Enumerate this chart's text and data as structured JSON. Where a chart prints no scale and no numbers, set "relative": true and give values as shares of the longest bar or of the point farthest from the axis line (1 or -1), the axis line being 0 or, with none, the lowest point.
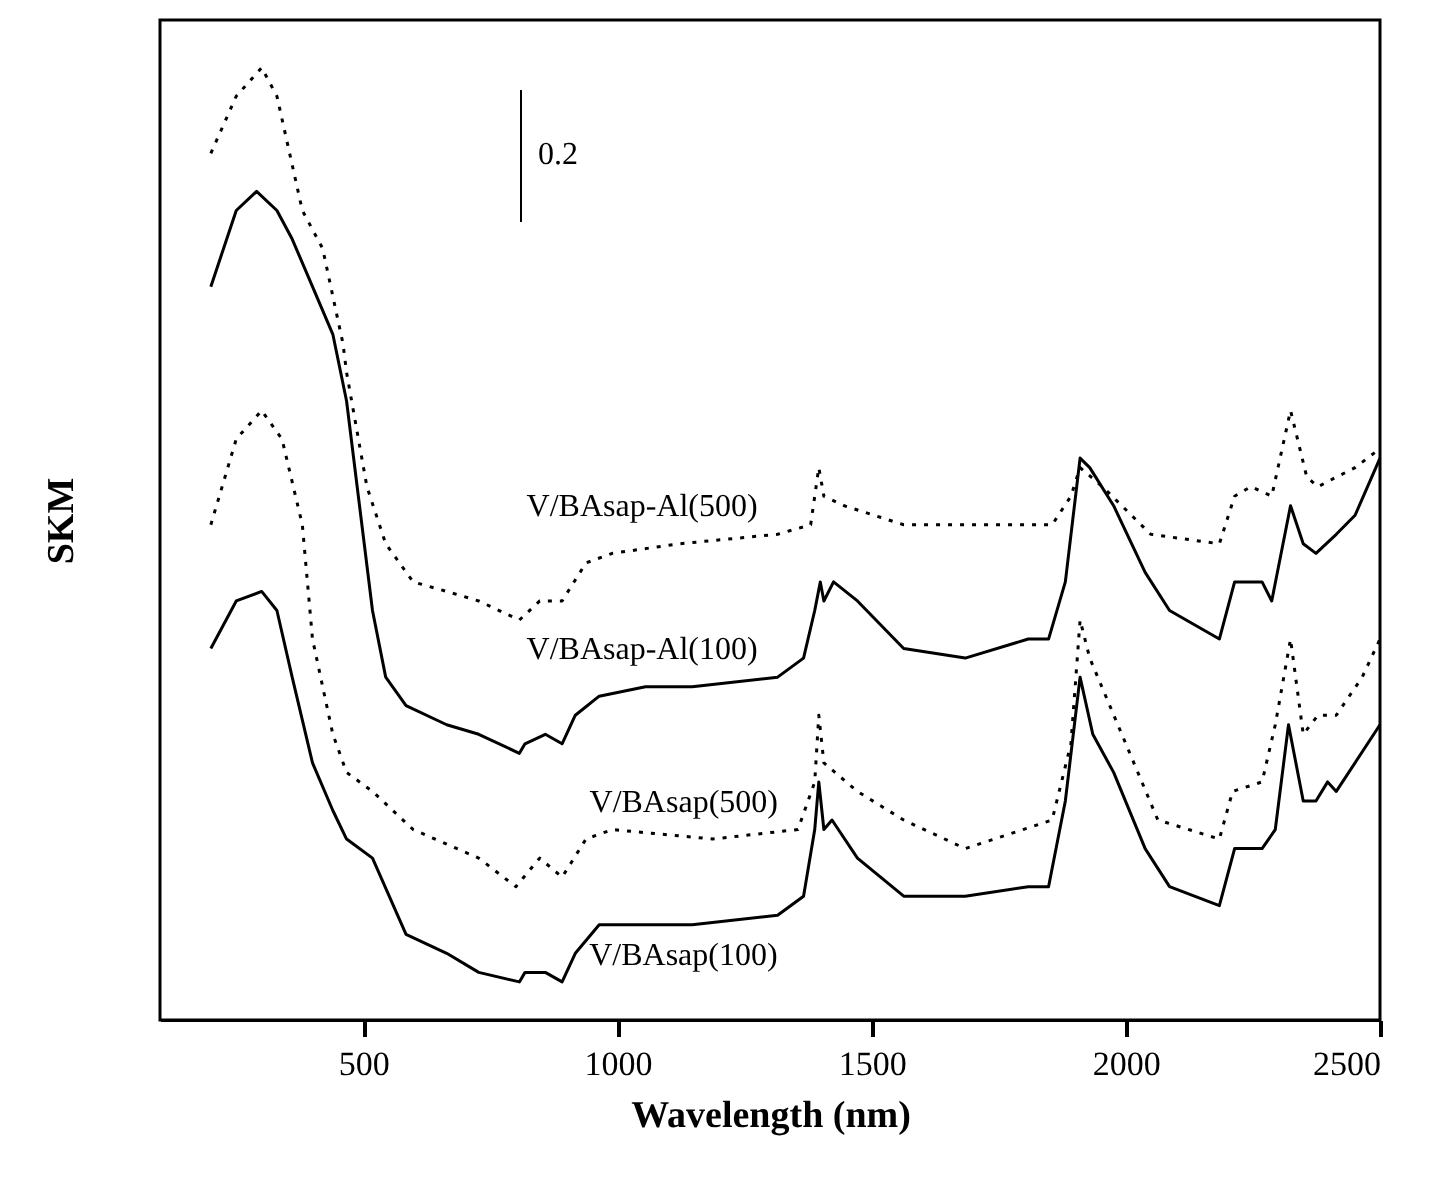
{
  "chart_data": {
    "type": "line",
    "relative": true,
    "xlabel": "Wavelength  (nm)",
    "ylabel": "SKM",
    "xlim": [
      100,
      2500
    ],
    "xticks": [
      500,
      1000,
      1500,
      2000,
      2500
    ],
    "marker": "none",
    "annotations": [
      "0.2"
    ],
    "series": [
      {
        "name": "V/BAsap-Al(500)",
        "color": "#000000",
        "line_style": "dotted",
        "x": [
          200,
          250,
          300,
          330,
          380,
          420,
          460,
          467,
          507,
          544,
          598,
          664,
          727,
          807,
          847,
          891,
          938,
          990,
          1121,
          1315,
          1380,
          1396,
          1406,
          1446,
          1563,
          1855,
          1892,
          1910,
          1954,
          2049,
          2184,
          2214,
          2246,
          2287,
          2324,
          2356,
          2378,
          2414,
          2451,
          2500
        ],
        "values": [
          0.91,
          0.97,
          1.0,
          0.97,
          0.85,
          0.81,
          0.71,
          0.68,
          0.56,
          0.5,
          0.46,
          0.45,
          0.44,
          0.42,
          0.44,
          0.44,
          0.48,
          0.49,
          0.5,
          0.51,
          0.52,
          0.58,
          0.55,
          0.54,
          0.52,
          0.52,
          0.55,
          0.58,
          0.56,
          0.51,
          0.5,
          0.55,
          0.56,
          0.55,
          0.64,
          0.57,
          0.56,
          0.57,
          0.58,
          0.6
        ]
      },
      {
        "name": "V/BAsap-Al(100)",
        "color": "#000000",
        "line_style": "solid",
        "x": [
          200,
          250,
          290,
          330,
          360,
          400,
          440,
          467,
          518,
          544,
          584,
          664,
          727,
          807,
          818,
          858,
          891,
          917,
          964,
          1055,
          1147,
          1315,
          1366,
          1388,
          1399,
          1406,
          1425,
          1472,
          1563,
          1684,
          1808,
          1848,
          1881,
          1910,
          1929,
          1976,
          2038,
          2086,
          2184,
          2214,
          2268,
          2287,
          2324,
          2349,
          2374,
          2414,
          2451,
          2500
        ],
        "values": [
          0.77,
          0.85,
          0.87,
          0.85,
          0.82,
          0.77,
          0.72,
          0.65,
          0.43,
          0.36,
          0.33,
          0.31,
          0.3,
          0.28,
          0.29,
          0.3,
          0.29,
          0.32,
          0.34,
          0.35,
          0.35,
          0.36,
          0.38,
          0.43,
          0.46,
          0.44,
          0.46,
          0.44,
          0.39,
          0.38,
          0.4,
          0.4,
          0.46,
          0.59,
          0.58,
          0.54,
          0.47,
          0.43,
          0.4,
          0.46,
          0.46,
          0.44,
          0.54,
          0.5,
          0.49,
          0.51,
          0.53,
          0.59
        ]
      },
      {
        "name": "V/BAsap(500)",
        "color": "#000000",
        "line_style": "dotted",
        "x": [
          200,
          250,
          300,
          340,
          380,
          400,
          440,
          467,
          518,
          598,
          727,
          800,
          847,
          891,
          938,
          990,
          1187,
          1355,
          1388,
          1396,
          1406,
          1472,
          1563,
          1684,
          1855,
          1892,
          1910,
          1929,
          2000,
          2063,
          2184,
          2210,
          2268,
          2294,
          2324,
          2349,
          2378,
          2414,
          2465,
          2500
        ],
        "values": [
          0.52,
          0.61,
          0.64,
          0.61,
          0.52,
          0.4,
          0.3,
          0.26,
          0.24,
          0.2,
          0.17,
          0.14,
          0.17,
          0.15,
          0.19,
          0.2,
          0.19,
          0.2,
          0.25,
          0.32,
          0.27,
          0.24,
          0.21,
          0.18,
          0.21,
          0.29,
          0.42,
          0.38,
          0.29,
          0.21,
          0.19,
          0.24,
          0.25,
          0.31,
          0.4,
          0.3,
          0.32,
          0.32,
          0.36,
          0.4
        ]
      },
      {
        "name": "V/BAsap(100)",
        "color": "#000000",
        "line_style": "solid",
        "x": [
          200,
          250,
          300,
          330,
          360,
          400,
          440,
          467,
          518,
          584,
          664,
          727,
          807,
          818,
          858,
          891,
          917,
          964,
          1147,
          1315,
          1366,
          1388,
          1396,
          1406,
          1422,
          1472,
          1563,
          1684,
          1808,
          1848,
          1881,
          1910,
          1935,
          1976,
          2038,
          2086,
          2184,
          2214,
          2268,
          2294,
          2320,
          2349,
          2374,
          2397,
          2414,
          2500
        ],
        "values": [
          0.39,
          0.44,
          0.45,
          0.43,
          0.36,
          0.27,
          0.22,
          0.19,
          0.17,
          0.09,
          0.07,
          0.05,
          0.04,
          0.05,
          0.05,
          0.04,
          0.07,
          0.1,
          0.1,
          0.11,
          0.13,
          0.2,
          0.25,
          0.2,
          0.21,
          0.17,
          0.13,
          0.13,
          0.14,
          0.14,
          0.23,
          0.36,
          0.3,
          0.26,
          0.18,
          0.14,
          0.12,
          0.18,
          0.18,
          0.2,
          0.31,
          0.23,
          0.23,
          0.25,
          0.24,
          0.31
        ]
      }
    ]
  }
}
